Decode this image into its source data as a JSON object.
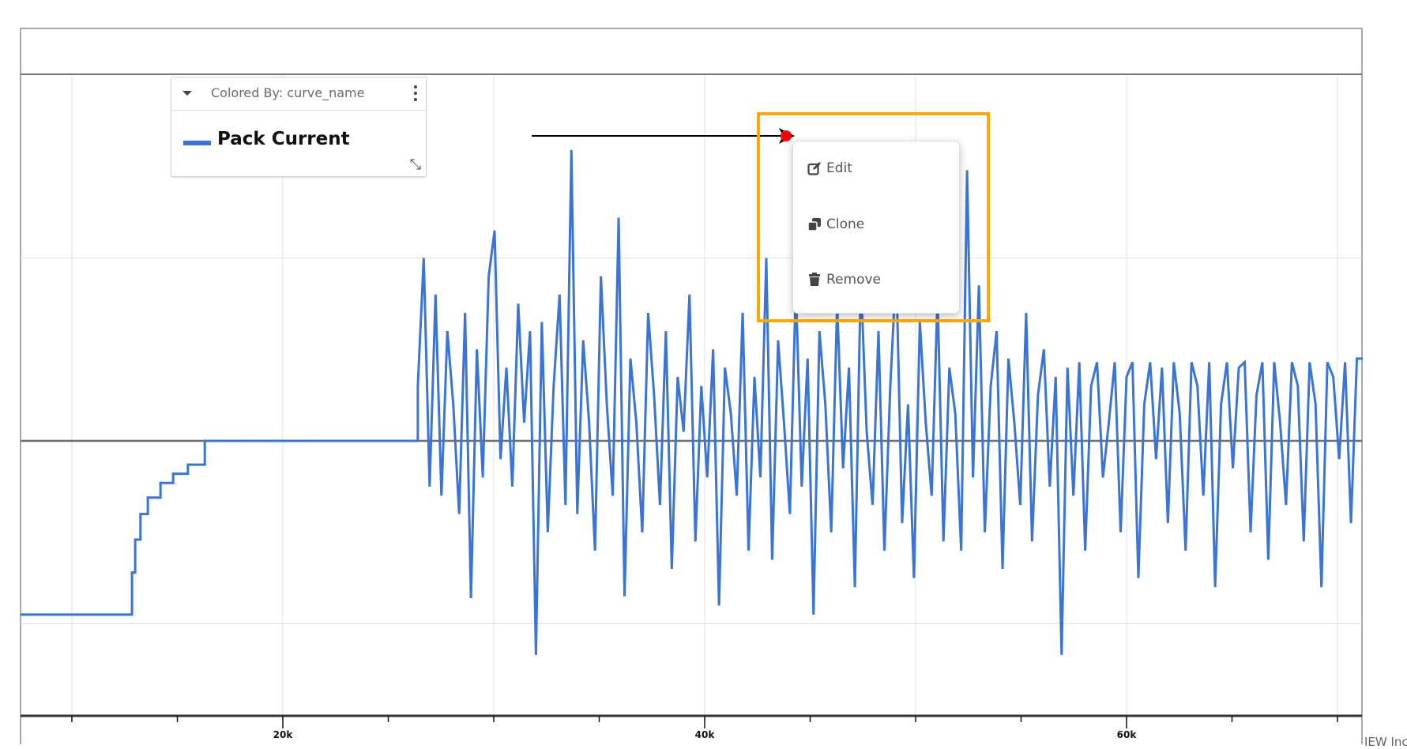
{
  "legend": {
    "title": "Colored By: curve_name",
    "items": [
      {
        "label": "Pack Current",
        "color": "#3a74d4"
      }
    ]
  },
  "context_menu": {
    "items": [
      {
        "label": "Edit",
        "icon": "edit-icon"
      },
      {
        "label": "Clone",
        "icon": "clone-icon"
      },
      {
        "label": "Remove",
        "icon": "trash-icon"
      }
    ]
  },
  "annotation": {
    "arrow_color": "#000000",
    "pointer_color": "#ff0000",
    "highlight_color": "#ffa800"
  },
  "footer": {
    "text": "IEW Inc"
  },
  "chart_data": {
    "type": "line",
    "title": "",
    "xlabel": "",
    "ylabel": "",
    "x_ticks": [
      "20k",
      "40k",
      "60k"
    ],
    "x_tick_values": [
      20000,
      40000,
      60000
    ],
    "xlim": [
      7570,
      71200
    ],
    "ylim": [
      -1.5,
      2.0
    ],
    "grid": true,
    "legend_position": "top-left",
    "series": [
      {
        "name": "Pack Current",
        "color": "#3a74d4",
        "step_points": [
          [
            7570,
            -0.95
          ],
          [
            12850,
            -0.95
          ],
          [
            12850,
            -0.72
          ],
          [
            13000,
            -0.72
          ],
          [
            13000,
            -0.54
          ],
          [
            13250,
            -0.54
          ],
          [
            13250,
            -0.4
          ],
          [
            13600,
            -0.4
          ],
          [
            13600,
            -0.31
          ],
          [
            14200,
            -0.31
          ],
          [
            14200,
            -0.23
          ],
          [
            14800,
            -0.23
          ],
          [
            14800,
            -0.18
          ],
          [
            15500,
            -0.18
          ],
          [
            15500,
            -0.13
          ],
          [
            16300,
            -0.13
          ],
          [
            16300,
            0
          ],
          [
            26400,
            0
          ]
        ],
        "sampled": {
          "x_start": 26400,
          "x_end": 71200,
          "y": [
            0.3,
            1.0,
            -0.25,
            0.8,
            -0.3,
            0.6,
            0.2,
            -0.4,
            0.7,
            -0.86,
            0.5,
            -0.2,
            0.9,
            1.15,
            -0.1,
            0.4,
            -0.25,
            0.75,
            0.1,
            0.6,
            -1.17,
            0.65,
            -0.5,
            0.3,
            0.8,
            -0.35,
            1.59,
            -0.4,
            0.55,
            0.1,
            -0.6,
            0.9,
            0.2,
            -0.3,
            1.22,
            -0.85,
            0.45,
            0.1,
            -0.5,
            0.7,
            0.25,
            -0.35,
            0.6,
            -0.7,
            0.35,
            0.05,
            0.8,
            -0.55,
            0.3,
            -0.2,
            0.5,
            -0.9,
            0.4,
            0.15,
            -0.3,
            0.7,
            -0.6,
            0.35,
            -0.2,
            1.0,
            -0.65,
            0.55,
            0.1,
            -0.4,
            0.85,
            -0.25,
            0.45,
            -0.95,
            0.6,
            0.2,
            -0.5,
            0.75,
            -0.15,
            0.4,
            -0.8,
            0.9,
            0.05,
            -0.35,
            0.6,
            -0.6,
            0.3,
            0.95,
            -0.45,
            0.2,
            -0.75,
            0.65,
            0.1,
            -0.3,
            0.8,
            -0.55,
            0.4,
            0.15,
            -0.6,
            1.48,
            -0.2,
            0.85,
            -0.5,
            0.3,
            0.6,
            -0.7,
            0.45,
            0.1,
            -0.35,
            0.7,
            -0.55,
            0.25,
            0.5,
            -0.25,
            0.35,
            -1.17,
            0.4,
            -0.3,
            0.43,
            -0.6,
            0.3,
            0.43,
            -0.2,
            0.1,
            0.43,
            -0.5,
            0.35,
            0.43,
            -0.75,
            0.2,
            0.43,
            -0.1,
            0.4,
            -0.45,
            0.43,
            0.15,
            -0.6,
            0.43,
            0.3,
            -0.3,
            0.43,
            -0.8,
            0.2,
            0.43,
            -0.15,
            0.4,
            0.43,
            -0.5,
            0.25,
            0.43,
            -0.65,
            0.43,
            0.1,
            -0.35,
            0.43,
            0.3,
            -0.55,
            0.43,
            0.2,
            -0.8,
            0.43,
            0.35,
            -0.1,
            0.43,
            -0.45,
            0.45,
            0.45
          ]
        }
      }
    ]
  }
}
